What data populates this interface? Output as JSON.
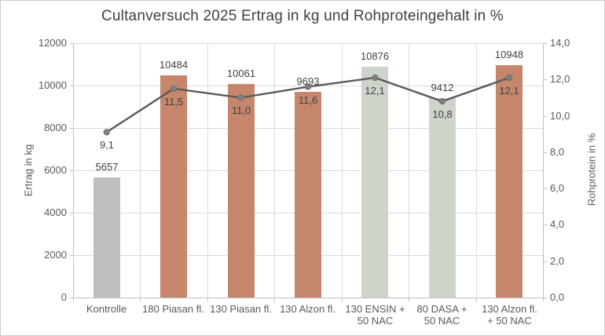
{
  "chart_data": {
    "type": "combo-bar-line",
    "title": "Cultanversuch 2025 Ertrag in kg und Rohproteingehalt in %",
    "categories": [
      [
        "Kontrolle"
      ],
      [
        "180 Piasan fl."
      ],
      [
        "130 Piasan fl."
      ],
      [
        "130 Alzon fl."
      ],
      [
        "130 ENSIN +",
        "50 NAC"
      ],
      [
        "80 DASA +",
        "50 NAC"
      ],
      [
        "130 Alzon fl.",
        "+ 50 NAC"
      ]
    ],
    "series": [
      {
        "name": "Ertrag in kg",
        "type": "bar",
        "values": [
          5657,
          10484,
          10061,
          9693,
          10876,
          9412,
          10948
        ],
        "value_labels": [
          "5657",
          "10484",
          "10061",
          "9693",
          "10876",
          "9412",
          "10948"
        ],
        "bar_colors": [
          "#BFBFBF",
          "#C5866C",
          "#C5866C",
          "#C5866C",
          "#CDD5CB",
          "#CDD5CB",
          "#C5866C"
        ]
      },
      {
        "name": "Rohprotein in %",
        "type": "line",
        "values": [
          9.1,
          11.5,
          11.0,
          11.6,
          12.1,
          10.8,
          12.1
        ],
        "value_labels": [
          "9,1",
          "11,5",
          "11,0",
          "11,6",
          "12,1",
          "10,8",
          "12,1"
        ],
        "color": "#595959",
        "marker_color": "#7F7F7F"
      }
    ],
    "y_left": {
      "label": "Ertrag in kg",
      "min": 0,
      "max": 12000,
      "tick_values": [
        0,
        2000,
        4000,
        6000,
        8000,
        10000,
        12000
      ],
      "tick_labels": [
        "0",
        "2000",
        "4000",
        "6000",
        "8000",
        "10000",
        "12000"
      ]
    },
    "y_right": {
      "label": "Rohprotein in %",
      "min": 0,
      "max": 14,
      "tick_values": [
        0,
        2,
        4,
        6,
        8,
        10,
        12,
        14
      ],
      "tick_labels": [
        "0,0",
        "2,0",
        "4,0",
        "6,0",
        "8,0",
        "10,0",
        "12,0",
        "14,0"
      ]
    },
    "grid": true,
    "legend": "none",
    "colors": {
      "grid": "#D9D9D9",
      "axis": "#BFBFBF",
      "tick_text": "#595959",
      "label_text": "#404040",
      "title_text": "#404040",
      "border": "#D0CECE"
    }
  }
}
